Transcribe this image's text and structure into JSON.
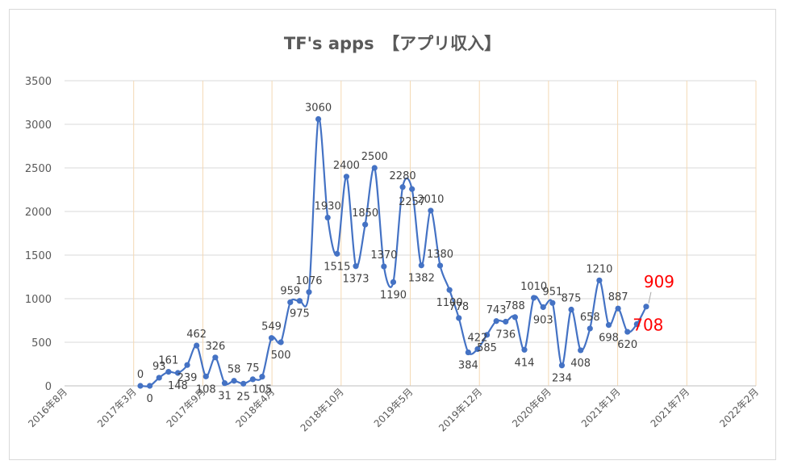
{
  "title": "TF's apps　【アプリ収入】",
  "colors": {
    "series": "#4472c4",
    "highlight": "#ff0000",
    "grid": "#d9d9d9",
    "vgrid": "#f4d9b4"
  },
  "chart_data": {
    "type": "line",
    "title": "TF's apps　【アプリ収入】",
    "xlabel": "",
    "ylabel": "",
    "ylim": [
      0,
      3500
    ],
    "yticks": [
      "0",
      "500",
      "1000",
      "1500",
      "2000",
      "2500",
      "3000",
      "3500"
    ],
    "xtick_labels": [
      "2016年8月",
      "2017年3月",
      "2017年9月",
      "2018年4月",
      "2018年10月",
      "2019年5月",
      "2019年12月",
      "2020年6月",
      "2021年1月",
      "2021年7月",
      "2022年2月"
    ],
    "grid": "on",
    "series": [
      {
        "values": [
          0,
          0,
          93,
          161,
          148,
          239,
          462,
          108,
          326,
          31,
          58,
          25,
          75,
          105,
          549,
          500,
          959,
          975,
          1076,
          3060,
          1930,
          1515,
          2400,
          1373,
          1850,
          2500,
          1370,
          1190,
          2280,
          2257,
          1382,
          2010,
          1380,
          1100,
          778,
          384,
          422,
          585,
          743,
          736,
          788,
          414,
          1010,
          903,
          951,
          234,
          875,
          408,
          658,
          1210,
          698,
          887,
          620,
          708,
          909
        ],
        "labels": [
          "0",
          "0",
          "93",
          "161",
          "148",
          "239",
          "462",
          "108",
          "326",
          "31",
          "58",
          "25",
          "75",
          "105",
          "549",
          "500",
          "959",
          "975",
          "1076",
          "3060",
          "1930",
          "1515",
          "2400",
          "1373",
          "1850",
          "2500",
          "1370",
          "1190",
          "2280",
          "2257",
          "1382",
          "2010",
          "1380",
          "1100",
          "778",
          "384",
          "422",
          "585",
          "743",
          "736",
          "788",
          "414",
          "1010",
          "903",
          "951",
          "234",
          "875",
          "408",
          "658",
          "1210",
          "698",
          "887",
          "620",
          "708",
          "909"
        ]
      }
    ]
  }
}
